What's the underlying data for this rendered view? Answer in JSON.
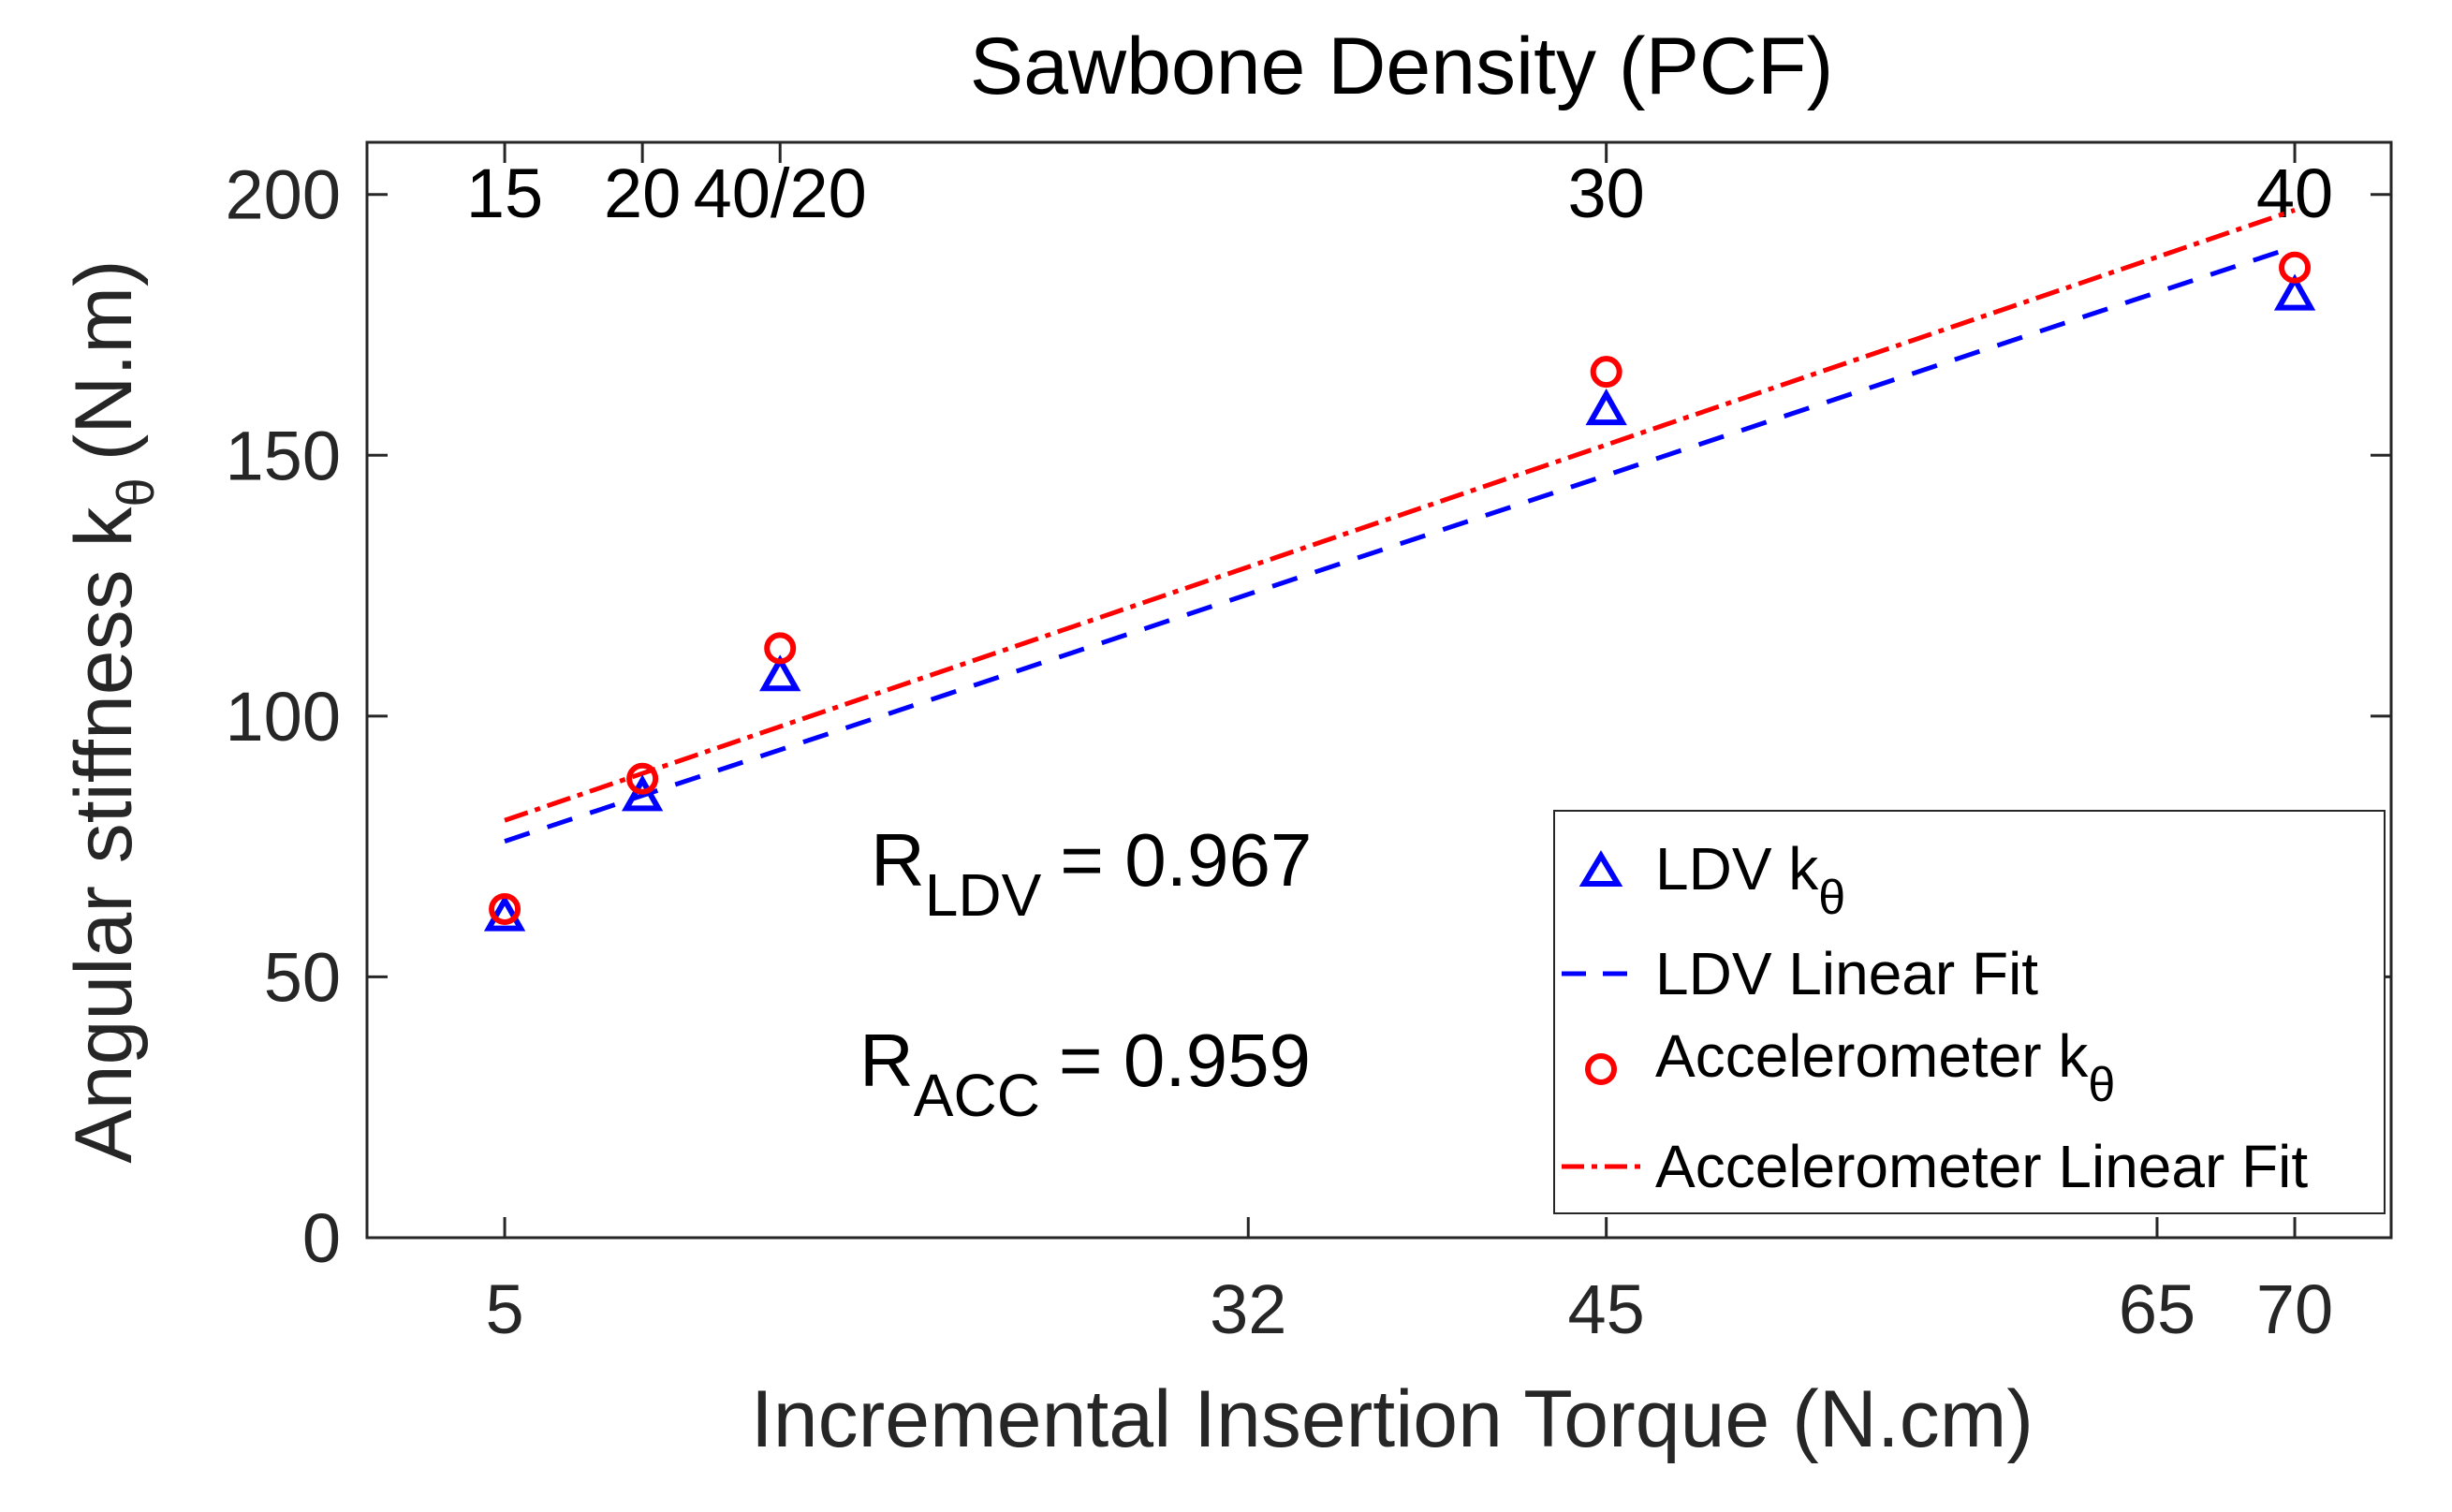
{
  "chart_data": {
    "type": "scatter",
    "title": "Sawbone Density (PCF)",
    "xlabel": "Incremental Insertion Torque (N.cm)",
    "ylabel": "Angular stiffness k",
    "ylabel_sub": "θ",
    "xlim": [
      0,
      73.5
    ],
    "ylim": [
      0,
      210
    ],
    "x_ticks": [
      {
        "value": 5,
        "label": "5"
      },
      {
        "value": 32,
        "label": "32"
      },
      {
        "value": 45,
        "label": "45"
      },
      {
        "value": 65,
        "label": "65"
      },
      {
        "value": 70,
        "label": "70"
      }
    ],
    "y_ticks": [
      {
        "value": 0,
        "label": "0"
      },
      {
        "value": 50,
        "label": "50"
      },
      {
        "value": 100,
        "label": "100"
      },
      {
        "value": 150,
        "label": "150"
      },
      {
        "value": 200,
        "label": "200"
      }
    ],
    "top_ticks": [
      {
        "value": 5,
        "label": "15"
      },
      {
        "value": 10,
        "label": "20"
      },
      {
        "value": 15,
        "label": "40/20"
      },
      {
        "value": 45,
        "label": "30"
      },
      {
        "value": 70,
        "label": "40"
      }
    ],
    "ylabel_units": "(N.m)",
    "series": [
      {
        "name": "LDV k",
        "name_sub": "θ",
        "kind": "markers",
        "marker": "triangle",
        "color": "#0000ff",
        "x": [
          5,
          10,
          15,
          45,
          70
        ],
        "y": [
          62,
          85,
          108,
          159,
          181
        ]
      },
      {
        "name": "LDV Linear Fit",
        "kind": "line",
        "dash": "dashed",
        "color": "#0000ff",
        "x": [
          5,
          70
        ],
        "y": [
          76,
          190
        ]
      },
      {
        "name": "Accelerometer k",
        "name_sub": "θ",
        "kind": "markers",
        "marker": "circle",
        "color": "#ff0000",
        "x": [
          5,
          10,
          15,
          45,
          70
        ],
        "y": [
          63,
          88,
          113,
          166,
          186
        ]
      },
      {
        "name": "Accelerometer Linear Fit",
        "kind": "line",
        "dash": "dashdot",
        "color": "#ff0000",
        "x": [
          5,
          70
        ],
        "y": [
          80,
          197
        ]
      }
    ],
    "annotations": [
      {
        "main": "R",
        "sub": "LDV",
        "value": "= 0.967"
      },
      {
        "main": "R",
        "sub": "ACC",
        "value": "= 0.959"
      }
    ],
    "legend_position": "bottom-right",
    "grid": false
  }
}
